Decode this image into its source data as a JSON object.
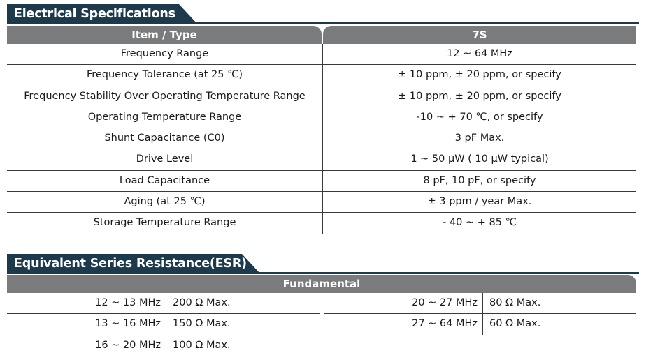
{
  "colors": {
    "title_tab": "#1c3a4c",
    "header_bar": "#7a7b7d",
    "rule": "#3a3a3a"
  },
  "electrical": {
    "title": "Electrical Specifications",
    "header": {
      "item": "Item / Type",
      "type": "7S"
    },
    "rows": [
      {
        "item": "Frequency Range",
        "value": "12 ~ 64 MHz"
      },
      {
        "item": "Frequency Tolerance (at 25 ℃)",
        "value": "± 10 ppm, ± 20 ppm, or specify"
      },
      {
        "item": "Frequency Stability Over Operating Temperature Range",
        "value": "± 10 ppm, ± 20 ppm, or specify"
      },
      {
        "item": "Operating Temperature Range",
        "value": "-10 ~ + 70 ℃, or specify"
      },
      {
        "item": "Shunt Capacitance (C0)",
        "value": "3 pF Max."
      },
      {
        "item": "Drive Level",
        "value": "1 ~ 50 μW ( 10 μW typical)"
      },
      {
        "item": "Load Capacitance",
        "value": "8 pF, 10 pF, or specify"
      },
      {
        "item": "Aging (at 25 ℃)",
        "value": "± 3 ppm / year Max."
      },
      {
        "item": "Storage Temperature Range",
        "value": "- 40 ~ + 85 ℃"
      }
    ]
  },
  "esr": {
    "title": "Equivalent Series Resistance(ESR)",
    "header": "Fundamental",
    "left": [
      {
        "range": "12 ~ 13 MHz",
        "value": "200 Ω Max."
      },
      {
        "range": "13 ~ 16 MHz",
        "value": "150 Ω Max."
      },
      {
        "range": "16 ~ 20 MHz",
        "value": "100 Ω Max."
      }
    ],
    "right": [
      {
        "range": "20 ~ 27  MHz",
        "value": "80 Ω Max."
      },
      {
        "range": "27 ~ 64 MHz",
        "value": "60 Ω Max."
      }
    ]
  }
}
